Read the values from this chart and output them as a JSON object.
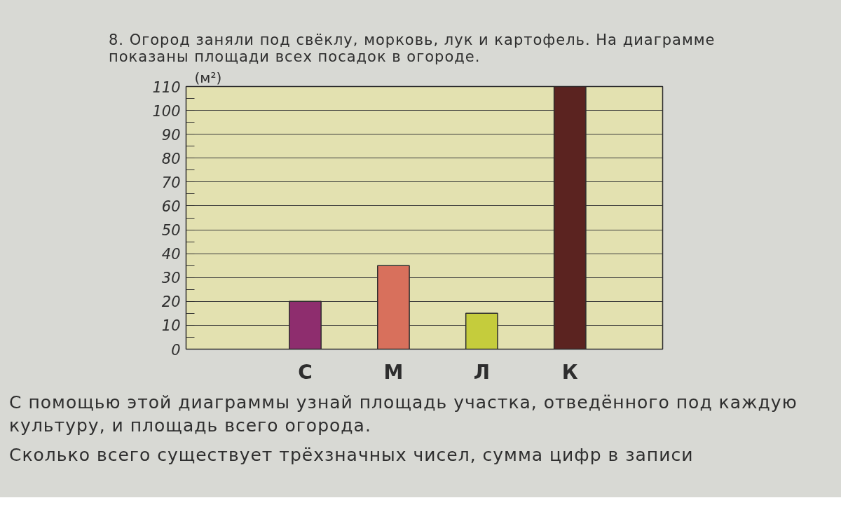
{
  "chart_data": {
    "type": "bar",
    "title": "8. Огород заняли под свёклу, морковь, лук и картофель. На диаграмме показаны площади всех посадок в огороде.",
    "ylabel": "(м²)",
    "categories": [
      "С",
      "М",
      "Л",
      "К"
    ],
    "values": [
      20,
      35,
      15,
      110
    ],
    "colors": [
      "#8e2d6e",
      "#d8705c",
      "#c5cc3c",
      "#5b2320"
    ],
    "ylim": [
      0,
      110
    ],
    "yticks": [
      0,
      {
        "value": 5,
        "label": null
      },
      10,
      {
        "value": 15,
        "label": null
      },
      20,
      {
        "value": 25,
        "label": null
      },
      30,
      {
        "value": 35,
        "label": null
      },
      40,
      {
        "value": 45,
        "label": null
      },
      50,
      {
        "value": 55,
        "label": null
      },
      60,
      {
        "value": 65,
        "label": null
      },
      70,
      {
        "value": 75,
        "label": null
      },
      80,
      {
        "value": 85,
        "label": null
      },
      90,
      {
        "value": 95,
        "label": null
      },
      100,
      {
        "value": 105,
        "label": null
      },
      110
    ],
    "grid": "y",
    "annotations": [
      "С помощью этой диаграммы узнай площадь участка, отведённого под каждую культуру, и площадь всего огорода.",
      "Сколько всего существует трёхзначных чисел, сумма цифр в записи"
    ]
  }
}
